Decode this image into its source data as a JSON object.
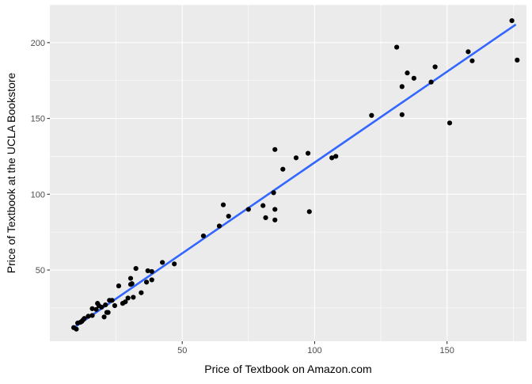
{
  "chart_data": {
    "type": "scatter",
    "title": "",
    "xlabel": "Price of Textbook on Amazon.com",
    "ylabel": "Price of Textbook at the UCLA Bookstore",
    "xlim": [
      0,
      180
    ],
    "ylim": [
      3,
      225
    ],
    "x_ticks": [
      50,
      100,
      150
    ],
    "y_ticks": [
      50,
      100,
      150,
      200
    ],
    "x_tick_labels": [
      "50",
      "100",
      "150"
    ],
    "y_tick_labels": [
      "50",
      "100",
      "150",
      "200"
    ],
    "grid": true,
    "legend": "none",
    "colors": {
      "panel_background": "#EBEBEB",
      "grid": "#FFFFFF",
      "points": "#000000",
      "fit_line": "#3366FF"
    },
    "fit_line": {
      "type": "linear",
      "x": [
        9.5,
        176.0
      ],
      "y": [
        12.5,
        212.0
      ]
    },
    "points": [
      {
        "x": 9.0,
        "y": 12.0
      },
      {
        "x": 10.0,
        "y": 11.0
      },
      {
        "x": 10.5,
        "y": 15.0
      },
      {
        "x": 11.5,
        "y": 15.5
      },
      {
        "x": 12.0,
        "y": 16.0
      },
      {
        "x": 12.5,
        "y": 17.0
      },
      {
        "x": 13.0,
        "y": 18.0
      },
      {
        "x": 14.5,
        "y": 19.5
      },
      {
        "x": 16.0,
        "y": 20.0
      },
      {
        "x": 16.0,
        "y": 24.5
      },
      {
        "x": 17.5,
        "y": 24.0
      },
      {
        "x": 18.0,
        "y": 28.0
      },
      {
        "x": 18.5,
        "y": 26.5
      },
      {
        "x": 19.5,
        "y": 25.5
      },
      {
        "x": 20.5,
        "y": 19.0
      },
      {
        "x": 21.5,
        "y": 22.0
      },
      {
        "x": 21.0,
        "y": 27.0
      },
      {
        "x": 22.0,
        "y": 22.0
      },
      {
        "x": 22.5,
        "y": 30.0
      },
      {
        "x": 23.5,
        "y": 30.0
      },
      {
        "x": 24.5,
        "y": 26.5
      },
      {
        "x": 26.0,
        "y": 39.5
      },
      {
        "x": 27.5,
        "y": 28.0
      },
      {
        "x": 28.5,
        "y": 29.0
      },
      {
        "x": 29.5,
        "y": 31.5
      },
      {
        "x": 30.5,
        "y": 44.5
      },
      {
        "x": 30.5,
        "y": 40.5
      },
      {
        "x": 31.0,
        "y": 41.0
      },
      {
        "x": 31.5,
        "y": 32.0
      },
      {
        "x": 32.5,
        "y": 51.0
      },
      {
        "x": 34.5,
        "y": 35.0
      },
      {
        "x": 36.5,
        "y": 42.0
      },
      {
        "x": 37.0,
        "y": 49.5
      },
      {
        "x": 38.5,
        "y": 43.5
      },
      {
        "x": 38.5,
        "y": 49.0
      },
      {
        "x": 42.5,
        "y": 55.0
      },
      {
        "x": 47.0,
        "y": 54.0
      },
      {
        "x": 58.0,
        "y": 72.5
      },
      {
        "x": 64.0,
        "y": 79.0
      },
      {
        "x": 65.5,
        "y": 93.0
      },
      {
        "x": 67.5,
        "y": 85.5
      },
      {
        "x": 75.0,
        "y": 90.0
      },
      {
        "x": 80.5,
        "y": 92.5
      },
      {
        "x": 81.5,
        "y": 84.5
      },
      {
        "x": 84.5,
        "y": 101.0
      },
      {
        "x": 85.0,
        "y": 129.5
      },
      {
        "x": 85.0,
        "y": 90.0
      },
      {
        "x": 85.0,
        "y": 83.0
      },
      {
        "x": 88.0,
        "y": 116.5
      },
      {
        "x": 93.0,
        "y": 124.0
      },
      {
        "x": 97.5,
        "y": 127.0
      },
      {
        "x": 98.0,
        "y": 88.5
      },
      {
        "x": 106.5,
        "y": 124.0
      },
      {
        "x": 108.0,
        "y": 125.0
      },
      {
        "x": 121.5,
        "y": 152.0
      },
      {
        "x": 131.0,
        "y": 197.0
      },
      {
        "x": 133.0,
        "y": 171.0
      },
      {
        "x": 133.0,
        "y": 152.5
      },
      {
        "x": 135.0,
        "y": 180.0
      },
      {
        "x": 137.5,
        "y": 176.5
      },
      {
        "x": 144.0,
        "y": 174.0
      },
      {
        "x": 145.5,
        "y": 184.0
      },
      {
        "x": 151.0,
        "y": 147.0
      },
      {
        "x": 158.0,
        "y": 194.0
      },
      {
        "x": 159.5,
        "y": 188.0
      },
      {
        "x": 174.5,
        "y": 214.5
      },
      {
        "x": 176.5,
        "y": 188.5
      }
    ]
  }
}
